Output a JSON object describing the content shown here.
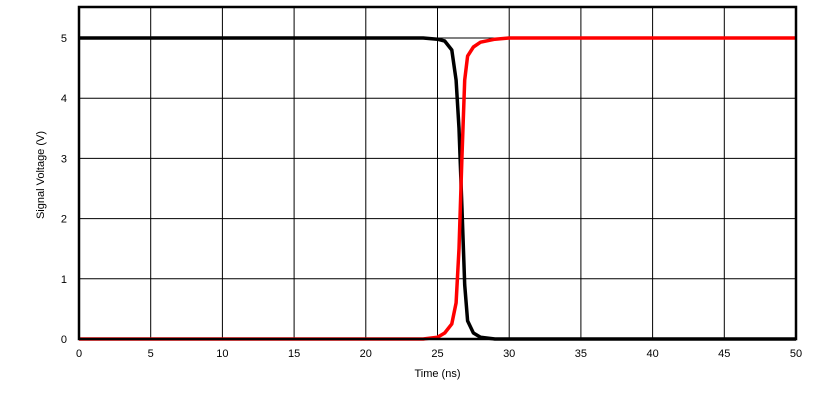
{
  "chart_data": {
    "type": "line",
    "title": "",
    "xlabel": "Time (ns)",
    "ylabel": "Signal Voltage (V)",
    "xlim": [
      0,
      50
    ],
    "ylim": [
      0,
      5.5
    ],
    "x_ticks": [
      0,
      5,
      10,
      15,
      20,
      25,
      30,
      35,
      40,
      45,
      50
    ],
    "y_ticks": [
      0,
      1,
      2,
      3,
      4,
      5
    ],
    "grid": true,
    "legend": null,
    "series": [
      {
        "name": "falling signal",
        "color": "#000000",
        "x": [
          0,
          5,
          10,
          15,
          20,
          24,
          25,
          25.5,
          26,
          26.3,
          26.5,
          26.7,
          26.9,
          27.1,
          27.5,
          28,
          29,
          30,
          35,
          40,
          45,
          50
        ],
        "y": [
          5,
          5,
          5,
          5,
          5,
          5,
          4.98,
          4.95,
          4.8,
          4.3,
          3.5,
          2.2,
          0.9,
          0.3,
          0.1,
          0.03,
          0,
          0,
          0,
          0,
          0,
          0
        ]
      },
      {
        "name": "rising signal",
        "color": "#ff0000",
        "x": [
          0,
          5,
          10,
          15,
          20,
          24,
          25,
          25.5,
          26,
          26.3,
          26.5,
          26.7,
          26.9,
          27.1,
          27.5,
          28,
          29,
          30,
          35,
          40,
          45,
          50
        ],
        "y": [
          0,
          0,
          0,
          0,
          0,
          0,
          0.03,
          0.1,
          0.25,
          0.6,
          1.5,
          3.0,
          4.3,
          4.7,
          4.85,
          4.93,
          4.98,
          5,
          5,
          5,
          5,
          5
        ]
      }
    ]
  },
  "labels": {
    "xlabel": "Time (ns)",
    "ylabel": "Signal Voltage (V)",
    "xticks": [
      "0",
      "5",
      "10",
      "15",
      "20",
      "25",
      "30",
      "35",
      "40",
      "45",
      "50"
    ],
    "yticks": [
      "0",
      "1",
      "2",
      "3",
      "4",
      "5"
    ]
  }
}
